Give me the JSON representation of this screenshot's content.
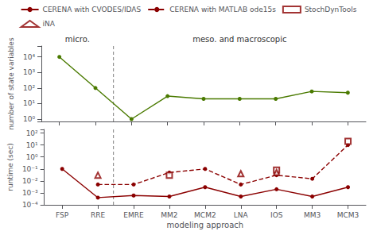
{
  "chart_data": [
    {
      "type": "line",
      "categories": [
        "FSP",
        "RRE",
        "EMRE",
        "MM2",
        "MCM2",
        "LNA",
        "IOS",
        "MM3",
        "MCM3"
      ],
      "values": [
        10000,
        100,
        1,
        30,
        20,
        20,
        20,
        60,
        50
      ],
      "color": "#4a7a00",
      "marker": "circle",
      "line_style": "solid",
      "ylabel": "number of state variables",
      "ylim": [
        0.7,
        50000
      ],
      "yticks": [
        {
          "value": 1,
          "label": "10⁰"
        },
        {
          "value": 10,
          "label": "10¹"
        },
        {
          "value": 100,
          "label": "10²"
        },
        {
          "value": 1000,
          "label": "10³"
        },
        {
          "value": 10000,
          "label": "10⁴"
        }
      ],
      "log": "y",
      "grid": false,
      "tick_labels": "y",
      "annotations": [
        {
          "text": "micro.",
          "from": "FSP",
          "to": "RRE"
        },
        {
          "text": "meso. and macroscopic",
          "from": "EMRE",
          "to": "MCM3"
        }
      ]
    },
    {
      "type": "line",
      "categories": [
        "FSP",
        "RRE",
        "EMRE",
        "MM2",
        "MCM2",
        "LNA",
        "IOS",
        "MM3",
        "MCM3"
      ],
      "xlabel": "modeling approach",
      "ylabel": "runtime (sec)",
      "ylim": [
        0.0001,
        200
      ],
      "yticks": [
        {
          "value": 0.0001,
          "label": "10⁻⁴"
        },
        {
          "value": 0.001,
          "label": "10⁻³"
        },
        {
          "value": 0.01,
          "label": "10⁻²"
        },
        {
          "value": 0.1,
          "label": "10⁻¹"
        },
        {
          "value": 1,
          "label": "10⁰"
        },
        {
          "value": 10,
          "label": "10¹"
        },
        {
          "value": 100,
          "label": "10²"
        }
      ],
      "log": "y",
      "grid": false,
      "legend": "top",
      "series": [
        {
          "name": "CERENA with CVODES/IDAS",
          "type": "line",
          "color": "#8b0000",
          "marker": "circle",
          "line_style": "solid",
          "values": [
            0.1,
            0.0004,
            0.0006,
            0.0005,
            0.003,
            0.0005,
            0.002,
            0.0005,
            0.003
          ]
        },
        {
          "name": "CERENA with MATLAB ode15s",
          "type": "line",
          "color": "#8b0000",
          "marker": "circle",
          "line_style": "dashed",
          "values": [
            null,
            0.005,
            0.005,
            0.05,
            0.1,
            0.005,
            0.03,
            0.015,
            10
          ]
        },
        {
          "name": "StochDynTools",
          "type": "scatter",
          "color": "#8b0000",
          "marker": "open_square",
          "values": [
            null,
            null,
            null,
            0.03,
            null,
            null,
            0.08,
            null,
            20
          ]
        },
        {
          "name": "iNA",
          "type": "scatter",
          "color": "#8b0000",
          "marker": "open_triangle",
          "values": [
            null,
            0.03,
            null,
            null,
            null,
            0.04,
            0.05,
            null,
            null
          ]
        }
      ]
    }
  ]
}
